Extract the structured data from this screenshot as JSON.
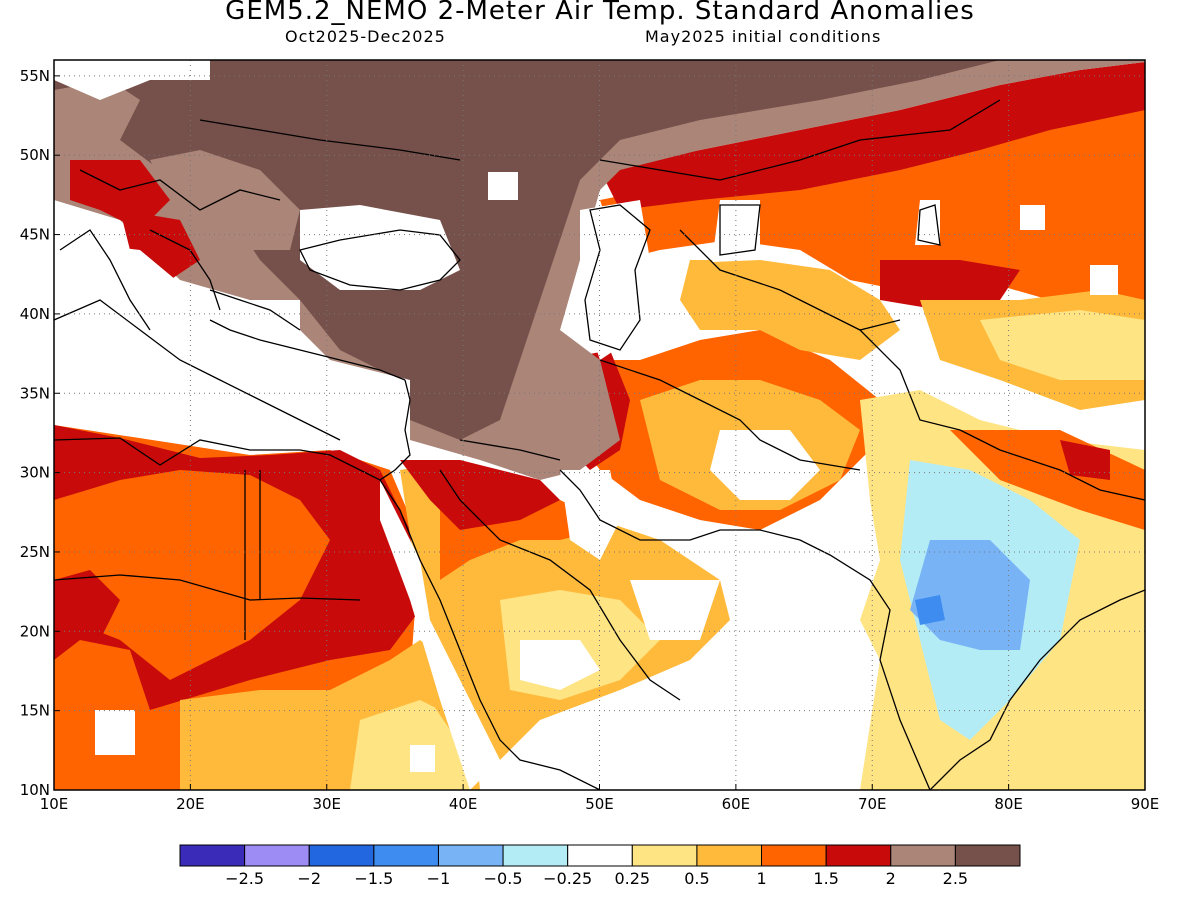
{
  "title": "GEM5.2_NEMO 2-Meter Air Temp. Standard Anomalies",
  "subtitle_left": "Oct2025-Dec2025",
  "subtitle_right": "May2025 initial conditions",
  "map": {
    "lon_range": [
      10,
      90
    ],
    "lat_range": [
      10,
      56
    ],
    "lon_ticks": [
      {
        "value": 10,
        "label": "10E"
      },
      {
        "value": 20,
        "label": "20E"
      },
      {
        "value": 30,
        "label": "30E"
      },
      {
        "value": 40,
        "label": "40E"
      },
      {
        "value": 50,
        "label": "50E"
      },
      {
        "value": 60,
        "label": "60E"
      },
      {
        "value": 70,
        "label": "70E"
      },
      {
        "value": 80,
        "label": "80E"
      },
      {
        "value": 90,
        "label": "90E"
      }
    ],
    "lat_ticks": [
      {
        "value": 10,
        "label": "10N"
      },
      {
        "value": 15,
        "label": "15N"
      },
      {
        "value": 20,
        "label": "20N"
      },
      {
        "value": 25,
        "label": "25N"
      },
      {
        "value": 30,
        "label": "30N"
      },
      {
        "value": 35,
        "label": "35N"
      },
      {
        "value": 40,
        "label": "40N"
      },
      {
        "value": 45,
        "label": "45N"
      },
      {
        "value": 50,
        "label": "50N"
      },
      {
        "value": 55,
        "label": "55N"
      }
    ],
    "grid": "dotted"
  },
  "colorbar": {
    "colors": [
      "#3a2bb8",
      "#9e8cf5",
      "#2266e0",
      "#3e8cf0",
      "#78b4f5",
      "#b4ecf6",
      "#ffffff",
      "#ffe484",
      "#ffba3c",
      "#ff6400",
      "#c80a0a",
      "#aa8578",
      "#76504a"
    ],
    "labels": [
      "-2.5",
      "-2",
      "-1.5",
      "-1",
      "-0.5",
      "-0.25",
      "0.25",
      "0.5",
      "1",
      "1.5",
      "2",
      "2.5"
    ]
  }
}
